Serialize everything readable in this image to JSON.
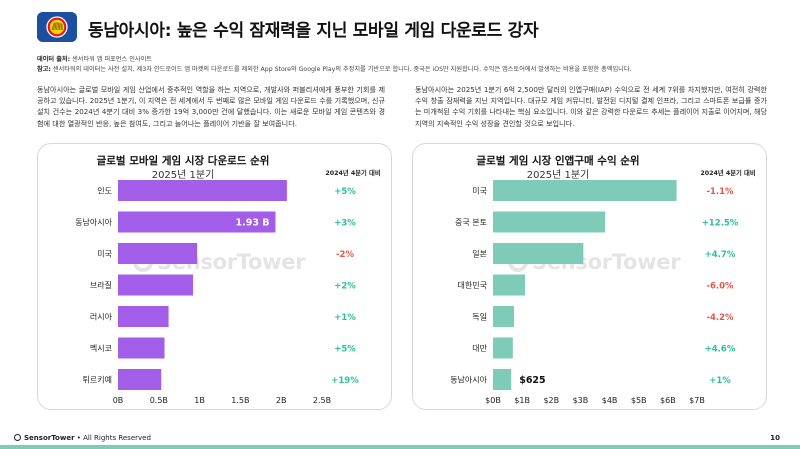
{
  "header": {
    "title": "동남아시아: 높은 수익 잠재력을 지닌 모바일 게임 다운로드 강자"
  },
  "meta": {
    "source_label": "데이터 출처:",
    "source_value": "센서타워 앱 퍼포먼스 인사이트",
    "note_label": "참고:",
    "note_value": "센서타워의 데이터는 사전 설치, 제3자 안드로이드 앱 마켓의 다운로드를 제외한 App Store와 Google Play의 추정치를 기반으로 합니다. 중국은 iOS만 지원합니다. 수익은 앱스토어에서 발생하는 비용을 포함한 총액입니다."
  },
  "paragraphs": {
    "left": "동남아시아는 글로벌 모바일 게임 산업에서 중추적인 역할을 하는 지역으로, 개발사와 퍼블리셔에게 풍부한 기회를 제공하고 있습니다. 2025년 1분기, 이 지역은 전 세계에서 두 번째로 많은 모바일 게임 다운로드 수를 기록했으며, 신규 설치 건수는 2024년 4분기 대비 3% 증가한 19억 3,000만 건에 달했습니다. 이는 새로운 모바일 게임 콘텐츠와 경험에 대한 열광적인 반응, 높은 참여도, 그리고 늘어나는 플레이어 기반을 잘 보여줍니다.",
    "right": "동남아시아는 2025년 1분기 6억 2,500만 달러의 인앱구매(IAP) 수익으로 전 세계 7위를 차지했지만, 여전히 강력한 수익 창출 잠재력을 지닌 지역입니다. 대규모 게임 커뮤니티, 발전된 디지털 결제 인프라, 그리고 스마트폰 보급률 증가는 미개척된 수익 기회를 나타내는 핵심 요소입니다. 이와 같은 강력한 다운로드 추세는 플레이어 지출로 이어지며, 해당 지역의 지속적인 수익 성장을 견인할 것으로 보입니다."
  },
  "watermark": "SensorTower",
  "footer": {
    "brand": "SensorTower",
    "rights": " • All Rights Reserved",
    "page": "10"
  },
  "chart_data": [
    {
      "type": "bar",
      "orientation": "horizontal",
      "title": "글로벌 모바일 게임 시장 다운로드 순위",
      "subtitle": "2025년 1분기",
      "change_header": "2024년 4분기 대비",
      "categories": [
        "인도",
        "동남아시아",
        "미국",
        "브라질",
        "러시아",
        "멕시코",
        "튀르키예"
      ],
      "values": [
        2.07,
        1.93,
        0.97,
        0.92,
        0.62,
        0.57,
        0.53
      ],
      "unit": "B",
      "changes": [
        "+5%",
        "+3%",
        "-2%",
        "+2%",
        "+1%",
        "+5%",
        "+19%"
      ],
      "highlight_index": 1,
      "highlight_label": "1.93 B",
      "xlim": [
        0,
        2.5
      ],
      "xticks": [
        "0B",
        "0.5B",
        "1B",
        "1.5B",
        "2B",
        "2.5B"
      ],
      "bar_color": "#a25ee8",
      "grid": false
    },
    {
      "type": "bar",
      "orientation": "horizontal",
      "title": "글로벌 게임 시장 인앱구매 수익 순위",
      "subtitle": "2025년 1분기",
      "change_header": "2024년 4분기 대비",
      "categories": [
        "미국",
        "중국 본토",
        "일본",
        "대한민국",
        "독일",
        "대만",
        "동남아시아"
      ],
      "values": [
        6.3,
        3.85,
        3.1,
        1.1,
        0.72,
        0.68,
        0.625
      ],
      "unit": "$B",
      "changes": [
        "-1.1%",
        "+12.5%",
        "+4.7%",
        "-6.0%",
        "-4.2%",
        "+4.6%",
        "+1%"
      ],
      "highlight_index": 6,
      "highlight_label": "$625",
      "xlim": [
        0,
        7
      ],
      "xticks": [
        "$0B",
        "$1B",
        "$2B",
        "$3B",
        "$4B",
        "$5B",
        "$6B",
        "$7B"
      ],
      "bar_color": "#7ecbb8",
      "grid": false
    }
  ],
  "colors": {
    "positive": "#2ec09a",
    "negative": "#e2574c",
    "logo_bg": "#1c4fa0",
    "accent_bar": "#7ecbb8"
  }
}
